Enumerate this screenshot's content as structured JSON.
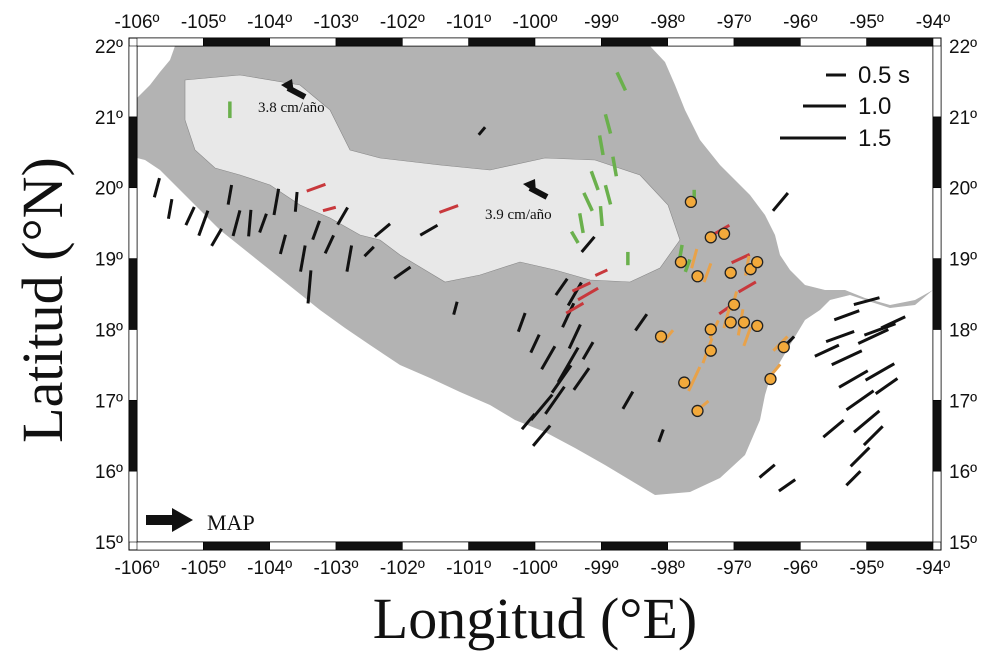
{
  "axes": {
    "x_title": "Longitud (°E)",
    "y_title": "Latitud (°N)",
    "lon_range": [
      -106,
      -94
    ],
    "lat_range": [
      15,
      22
    ],
    "lon_ticks": [
      "-106º",
      "-105º",
      "-104º",
      "-103º",
      "-102º",
      "-101º",
      "-100º",
      "-99º",
      "-98º",
      "-97º",
      "-96º",
      "-95º",
      "-94º"
    ],
    "lat_ticks": [
      "15º",
      "16º",
      "17º",
      "18º",
      "19º",
      "20º",
      "21º",
      "22º"
    ]
  },
  "colors": {
    "sea": "#ffffff",
    "land": "#b3b3b3",
    "volcanic_belt": "#e8e8e8",
    "frame": "#000000",
    "black_bars": "#111111",
    "green_bars": "#6ab04c",
    "red_bars": "#c8383c",
    "orange_bars": "#e8a24a",
    "station_fill": "#f2a93b"
  },
  "legend": {
    "items": [
      {
        "label": "0.5 s",
        "delay": 0.5
      },
      {
        "label": "1.0",
        "delay": 1.0
      },
      {
        "label": "1.5",
        "delay": 1.5
      }
    ]
  },
  "annotations": {
    "plate_motion_1": "3.8 cm/año",
    "plate_motion_2": "3.9 cm/año",
    "map_arrow_label": "MAP"
  },
  "map_data": {
    "black_segments": [
      [
        -105.7,
        20.0,
        0.3,
        75
      ],
      [
        -105.5,
        19.7,
        0.3,
        80
      ],
      [
        -105.2,
        19.6,
        0.3,
        65
      ],
      [
        -105.0,
        19.5,
        0.4,
        70
      ],
      [
        -104.8,
        19.3,
        0.3,
        60
      ],
      [
        -104.6,
        19.9,
        0.3,
        80
      ],
      [
        -104.5,
        19.5,
        0.4,
        75
      ],
      [
        -104.3,
        19.5,
        0.4,
        85
      ],
      [
        -104.1,
        19.5,
        0.3,
        70
      ],
      [
        -103.9,
        19.8,
        0.4,
        80
      ],
      [
        -103.8,
        19.2,
        0.3,
        75
      ],
      [
        -103.6,
        19.8,
        0.3,
        85
      ],
      [
        -103.5,
        19.0,
        0.4,
        80
      ],
      [
        -103.4,
        18.6,
        0.5,
        85
      ],
      [
        -103.3,
        19.4,
        0.3,
        70
      ],
      [
        -103.1,
        19.2,
        0.3,
        65
      ],
      [
        -102.9,
        19.6,
        0.3,
        60
      ],
      [
        -102.8,
        19.0,
        0.4,
        80
      ],
      [
        -102.5,
        19.1,
        0.2,
        45
      ],
      [
        -102.3,
        19.4,
        0.3,
        40
      ],
      [
        -102.0,
        18.8,
        0.3,
        35
      ],
      [
        -101.6,
        19.4,
        0.3,
        30
      ],
      [
        -101.2,
        18.3,
        0.2,
        75
      ],
      [
        -100.8,
        20.8,
        0.15,
        50
      ],
      [
        -100.2,
        18.1,
        0.3,
        70
      ],
      [
        -100.0,
        17.8,
        0.3,
        65
      ],
      [
        -99.8,
        17.6,
        0.4,
        60
      ],
      [
        -99.6,
        17.3,
        0.5,
        55
      ],
      [
        -99.5,
        17.5,
        0.6,
        60
      ],
      [
        -99.7,
        17.0,
        0.5,
        55
      ],
      [
        -99.9,
        16.9,
        0.5,
        50
      ],
      [
        -100.1,
        16.7,
        0.3,
        50
      ],
      [
        -99.4,
        17.9,
        0.4,
        65
      ],
      [
        -99.3,
        17.3,
        0.4,
        55
      ],
      [
        -99.2,
        17.7,
        0.3,
        60
      ],
      [
        -99.5,
        18.2,
        0.4,
        65
      ],
      [
        -99.4,
        18.5,
        0.4,
        60
      ],
      [
        -99.6,
        18.6,
        0.3,
        55
      ],
      [
        -99.2,
        19.2,
        0.3,
        50
      ],
      [
        -99.9,
        16.5,
        0.4,
        50
      ],
      [
        -98.6,
        17.0,
        0.3,
        60
      ],
      [
        -98.4,
        18.1,
        0.3,
        55
      ],
      [
        -98.1,
        16.5,
        0.2,
        70
      ],
      [
        -96.3,
        19.8,
        0.35,
        50
      ],
      [
        -95.4,
        17.9,
        0.45,
        20
      ],
      [
        -95.3,
        17.6,
        0.5,
        25
      ],
      [
        -95.2,
        17.3,
        0.5,
        30
      ],
      [
        -95.1,
        17.0,
        0.5,
        35
      ],
      [
        -95.0,
        16.7,
        0.5,
        40
      ],
      [
        -94.9,
        17.9,
        0.5,
        25
      ],
      [
        -94.8,
        17.4,
        0.5,
        30
      ],
      [
        -94.9,
        16.5,
        0.4,
        45
      ],
      [
        -95.1,
        16.2,
        0.4,
        45
      ],
      [
        -95.3,
        18.2,
        0.4,
        20
      ],
      [
        -95.0,
        18.4,
        0.4,
        15
      ],
      [
        -94.8,
        18.0,
        0.5,
        20
      ],
      [
        -94.7,
        17.2,
        0.4,
        35
      ],
      [
        -95.2,
        15.9,
        0.3,
        45
      ],
      [
        -94.6,
        18.1,
        0.4,
        25
      ],
      [
        -96.2,
        17.8,
        0.3,
        45
      ],
      [
        -96.5,
        16.0,
        0.3,
        40
      ],
      [
        -96.2,
        15.8,
        0.3,
        35
      ],
      [
        -95.6,
        17.7,
        0.4,
        25
      ],
      [
        -95.5,
        16.6,
        0.4,
        40
      ]
    ],
    "green_segments": [
      [
        -98.7,
        21.5,
        0.3,
        -65
      ],
      [
        -98.9,
        20.9,
        0.3,
        -75
      ],
      [
        -99.0,
        20.6,
        0.3,
        -80
      ],
      [
        -98.8,
        20.3,
        0.3,
        -80
      ],
      [
        -99.1,
        20.1,
        0.3,
        -70
      ],
      [
        -99.2,
        19.8,
        0.3,
        -65
      ],
      [
        -99.3,
        19.5,
        0.3,
        -80
      ],
      [
        -99.0,
        19.6,
        0.3,
        -85
      ],
      [
        -98.9,
        19.9,
        0.3,
        -75
      ],
      [
        -99.4,
        19.3,
        0.2,
        -60
      ],
      [
        -98.6,
        19.0,
        0.2,
        90
      ],
      [
        -104.6,
        21.1,
        0.25,
        90
      ],
      [
        -97.6,
        19.9,
        0.15,
        90
      ],
      [
        -97.8,
        19.1,
        0.2,
        80
      ],
      [
        -97.7,
        18.9,
        0.2,
        70
      ]
    ],
    "red_segments": [
      [
        -103.3,
        20.0,
        0.3,
        20
      ],
      [
        -103.1,
        19.7,
        0.2,
        15
      ],
      [
        -101.3,
        19.7,
        0.3,
        20
      ],
      [
        -99.3,
        18.6,
        0.3,
        25
      ],
      [
        -99.2,
        18.5,
        0.35,
        30
      ],
      [
        -99.4,
        18.3,
        0.3,
        30
      ],
      [
        -99.0,
        18.8,
        0.2,
        25
      ],
      [
        -97.2,
        19.4,
        0.3,
        30
      ],
      [
        -96.9,
        19.0,
        0.3,
        25
      ],
      [
        -96.8,
        18.6,
        0.3,
        30
      ],
      [
        -97.1,
        18.3,
        0.3,
        35
      ]
    ],
    "orange_segments": [
      [
        -98.0,
        17.9,
        0.25,
        50
      ],
      [
        -97.6,
        17.3,
        0.4,
        65
      ],
      [
        -97.4,
        17.7,
        0.4,
        70
      ],
      [
        -97.3,
        18.0,
        0.3,
        65
      ],
      [
        -97.1,
        18.2,
        0.4,
        75
      ],
      [
        -96.9,
        18.1,
        0.4,
        80
      ],
      [
        -96.8,
        17.9,
        0.3,
        70
      ],
      [
        -96.4,
        17.4,
        0.3,
        50
      ],
      [
        -96.3,
        17.8,
        0.3,
        45
      ],
      [
        -97.5,
        16.9,
        0.3,
        40
      ],
      [
        -97.0,
        18.4,
        0.3,
        75
      ],
      [
        -96.8,
        18.9,
        0.3,
        80
      ],
      [
        -97.4,
        18.8,
        0.3,
        70
      ],
      [
        -97.6,
        19.0,
        0.3,
        75
      ]
    ],
    "stations": [
      [
        -97.65,
        19.8
      ],
      [
        -97.35,
        19.3
      ],
      [
        -97.15,
        19.35
      ],
      [
        -97.8,
        18.95
      ],
      [
        -97.55,
        18.75
      ],
      [
        -97.05,
        18.8
      ],
      [
        -96.75,
        18.85
      ],
      [
        -96.65,
        18.95
      ],
      [
        -97.0,
        18.35
      ],
      [
        -97.05,
        18.1
      ],
      [
        -96.85,
        18.1
      ],
      [
        -96.65,
        18.05
      ],
      [
        -97.35,
        18.0
      ],
      [
        -98.1,
        17.9
      ],
      [
        -97.35,
        17.7
      ],
      [
        -96.25,
        17.75
      ],
      [
        -97.75,
        17.25
      ],
      [
        -96.45,
        17.3
      ],
      [
        -97.55,
        16.85
      ]
    ]
  }
}
